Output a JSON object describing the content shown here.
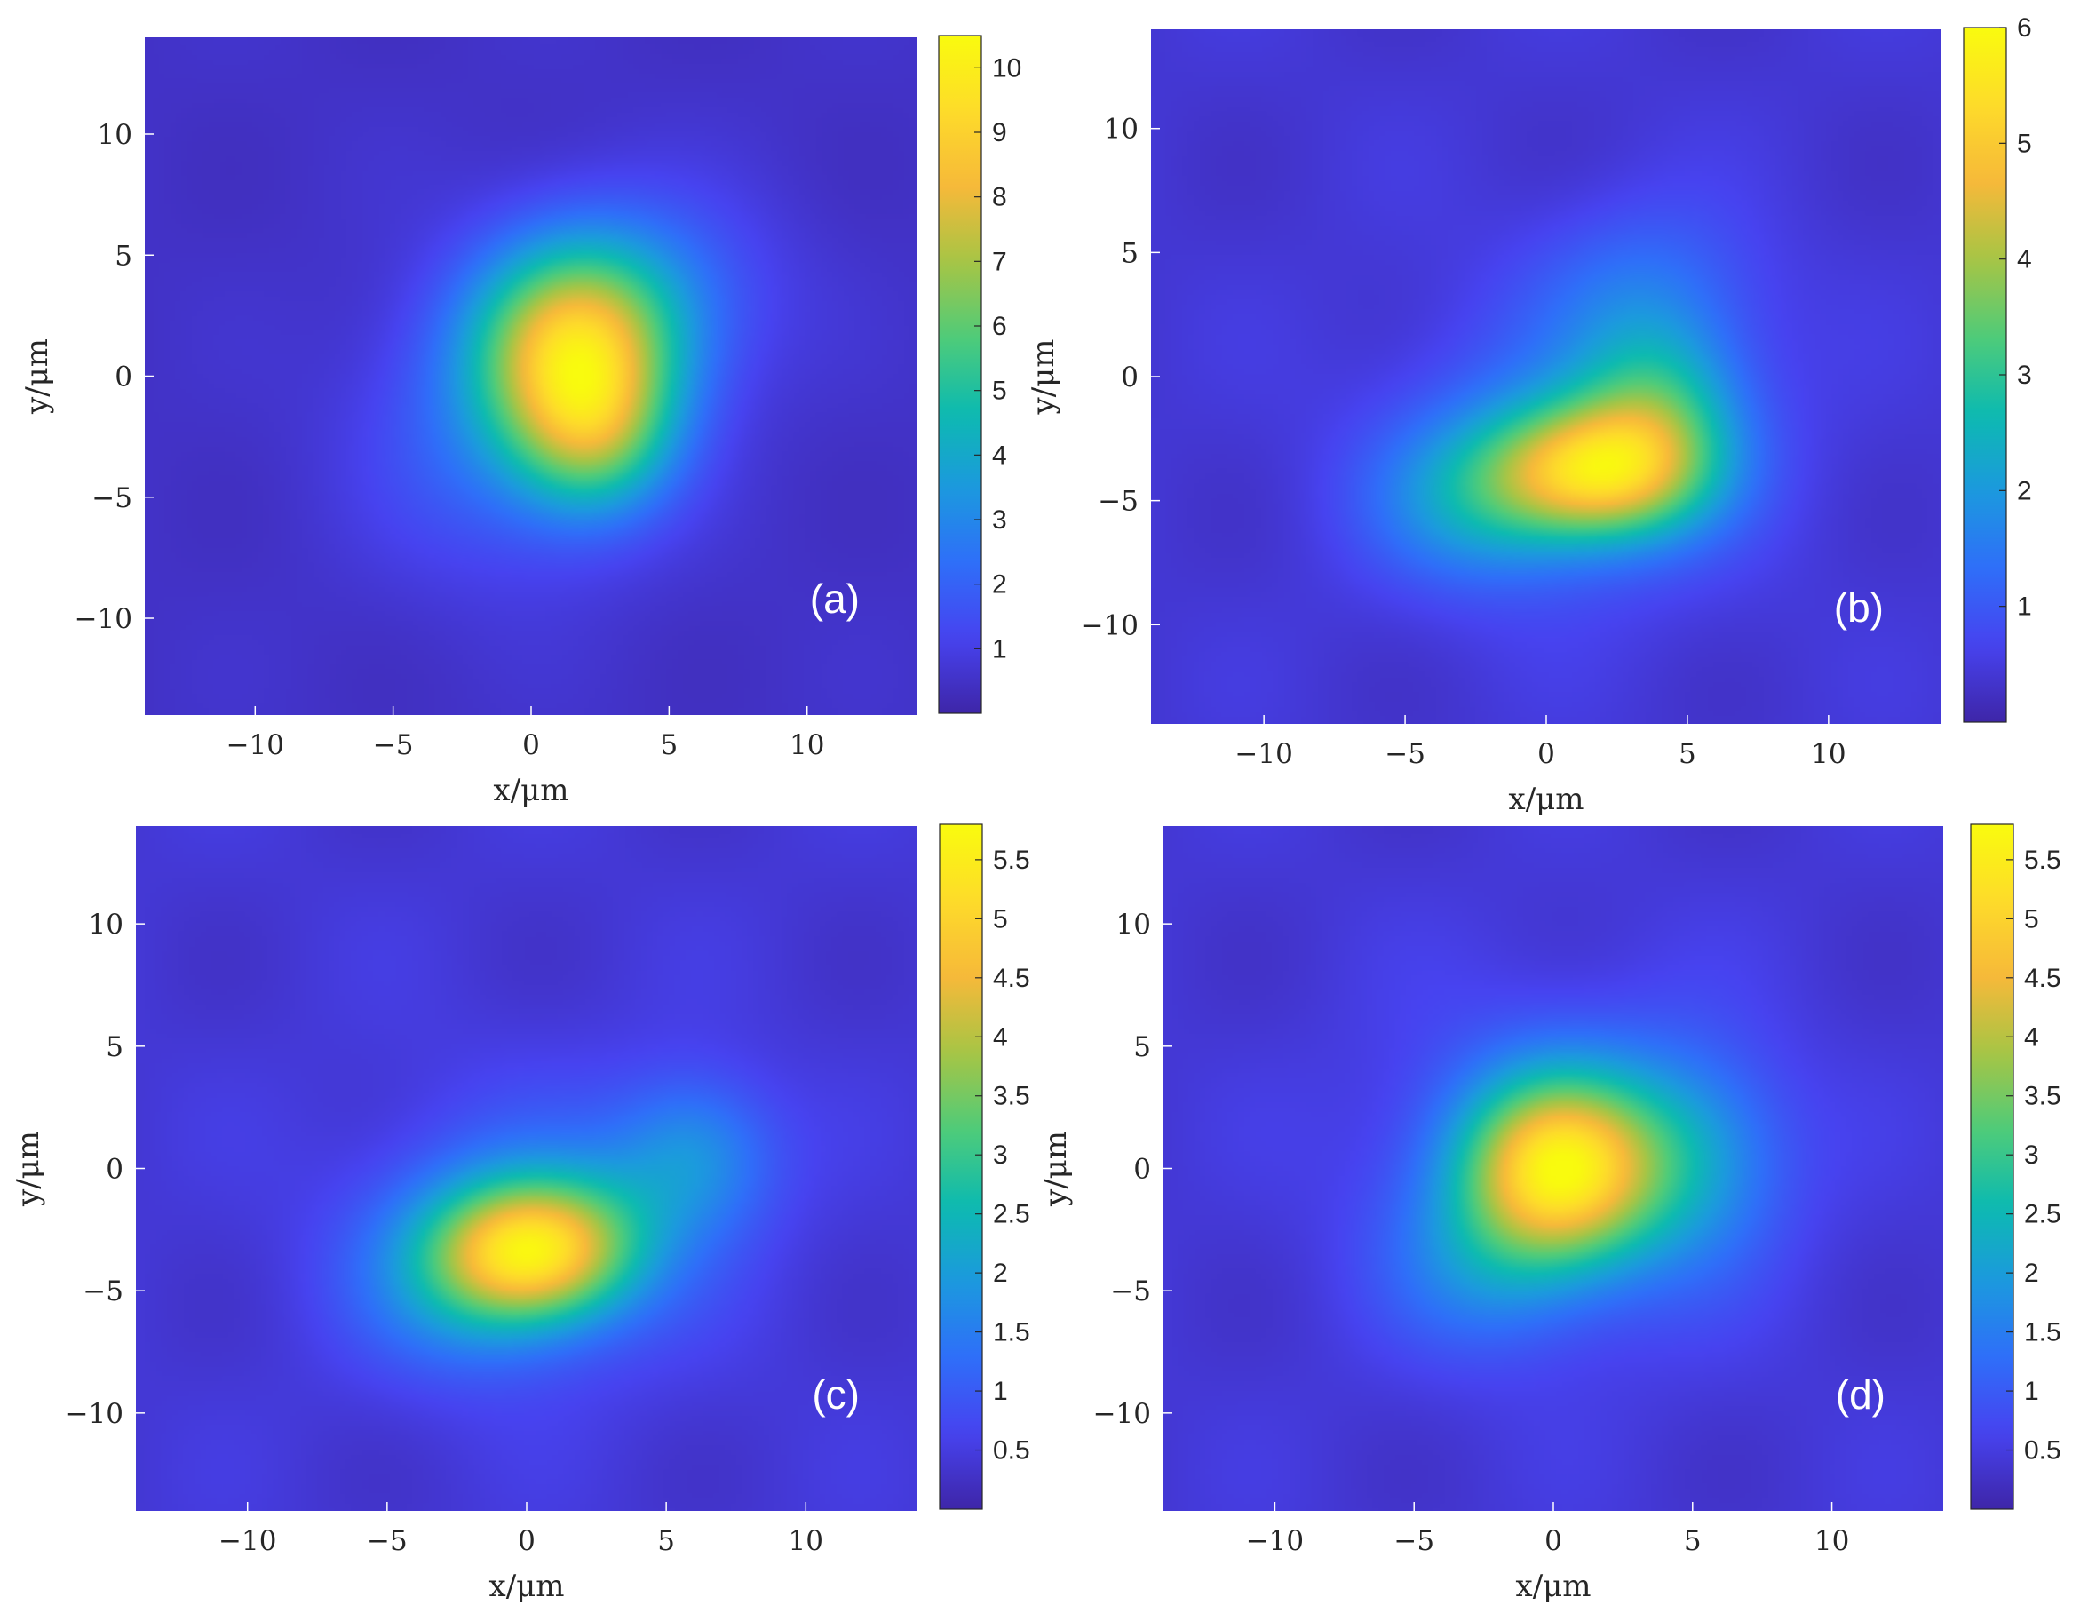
{
  "figure": {
    "colormap": "parula",
    "colormap_stops": [
      "#3e26a8",
      "#4743f0",
      "#2f6ff9",
      "#1c9ade",
      "#0dbbb0",
      "#50cc79",
      "#a8c545",
      "#f7b93a",
      "#fedc2a",
      "#f9fb0e"
    ]
  },
  "chart_data": [
    {
      "type": "heatmap",
      "panel_label": "(a)",
      "xlabel": "x/μm",
      "ylabel": "y/μm",
      "xlim": [
        -14,
        14
      ],
      "ylim": [
        -14,
        14
      ],
      "xticks": [
        -10,
        -5,
        0,
        5,
        10
      ],
      "xtick_labels": [
        "−10",
        "−5",
        "0",
        "5",
        "10"
      ],
      "yticks": [
        -10,
        -5,
        0,
        5,
        10
      ],
      "ytick_labels": [
        "−10",
        "−5",
        "0",
        "5",
        "10"
      ],
      "colorbar": {
        "range": [
          0,
          10.5
        ],
        "ticks": [
          1,
          2,
          3,
          4,
          5,
          6,
          7,
          8,
          9,
          10
        ],
        "tick_labels": [
          "1",
          "2",
          "3",
          "4",
          "5",
          "6",
          "7",
          "8",
          "9",
          "10"
        ]
      },
      "peak": {
        "x": 1.5,
        "y": 1.0,
        "value": 10.5
      },
      "background_value": 0.5,
      "components": [
        {
          "x": 1.6,
          "y": 1.2,
          "amp": 7.0,
          "sx": 2.6,
          "sy": 3.0
        },
        {
          "x": 2.3,
          "y": -2.5,
          "amp": 3.6,
          "sx": 2.0,
          "sy": 2.4
        },
        {
          "x": -1.0,
          "y": -2.5,
          "amp": 1.6,
          "sx": 3.5,
          "sy": 4.0
        },
        {
          "x": 4.5,
          "y": 3.5,
          "amp": 1.3,
          "sx": 3.2,
          "sy": 3.0
        }
      ]
    },
    {
      "type": "heatmap",
      "panel_label": "(b)",
      "xlabel": "x/μm",
      "ylabel": "y/μm",
      "xlim": [
        -14,
        14
      ],
      "ylim": [
        -14,
        14
      ],
      "xticks": [
        -10,
        -5,
        0,
        5,
        10
      ],
      "xtick_labels": [
        "−10",
        "−5",
        "0",
        "5",
        "10"
      ],
      "yticks": [
        -10,
        -5,
        0,
        5,
        10
      ],
      "ytick_labels": [
        "−10",
        "−5",
        "0",
        "5",
        "10"
      ],
      "colorbar": {
        "range": [
          0,
          6
        ],
        "ticks": [
          1,
          2,
          3,
          4,
          5,
          6
        ],
        "tick_labels": [
          "1",
          "2",
          "3",
          "4",
          "5",
          "6"
        ]
      },
      "peak": {
        "x": 1.5,
        "y": -4.0,
        "value": 6.0
      },
      "background_value": 0.4,
      "components": [
        {
          "x": 1.8,
          "y": -3.8,
          "amp": 3.9,
          "sx": 2.6,
          "sy": 1.9
        },
        {
          "x": 4.0,
          "y": -1.2,
          "amp": 1.7,
          "sx": 2.0,
          "sy": 2.5
        },
        {
          "x": -2.5,
          "y": -5.0,
          "amp": 1.3,
          "sx": 2.6,
          "sy": 2.3
        },
        {
          "x": 3.5,
          "y": 3.5,
          "amp": 0.8,
          "sx": 2.8,
          "sy": 2.6
        },
        {
          "x": 1.0,
          "y": -3.0,
          "amp": 0.9,
          "sx": 4.5,
          "sy": 4.0
        }
      ]
    },
    {
      "type": "heatmap",
      "panel_label": "(c)",
      "xlabel": "x/μm",
      "ylabel": "y/μm",
      "xlim": [
        -14,
        14
      ],
      "ylim": [
        -14,
        14
      ],
      "xticks": [
        -10,
        -5,
        0,
        5,
        10
      ],
      "xtick_labels": [
        "−10",
        "−5",
        "0",
        "5",
        "10"
      ],
      "yticks": [
        -10,
        -5,
        0,
        5,
        10
      ],
      "ytick_labels": [
        "−10",
        "−5",
        "0",
        "5",
        "10"
      ],
      "colorbar": {
        "range": [
          0,
          5.8
        ],
        "ticks": [
          0.5,
          1,
          1.5,
          2,
          2.5,
          3,
          3.5,
          4,
          4.5,
          5,
          5.5
        ],
        "tick_labels": [
          "0.5",
          "1",
          "1.5",
          "2",
          "2.5",
          "3",
          "3.5",
          "4",
          "4.5",
          "5",
          "5.5"
        ]
      },
      "peak": {
        "x": 0.0,
        "y": -3.5,
        "value": 5.8
      },
      "background_value": 0.4,
      "components": [
        {
          "x": 0.0,
          "y": -3.4,
          "amp": 3.8,
          "sx": 2.3,
          "sy": 2.0
        },
        {
          "x": 2.5,
          "y": -2.8,
          "amp": 0.8,
          "sx": 2.0,
          "sy": 2.0
        },
        {
          "x": 6.0,
          "y": 0.5,
          "amp": 1.3,
          "sx": 2.0,
          "sy": 2.3
        },
        {
          "x": -2.5,
          "y": -4.5,
          "amp": 1.0,
          "sx": 2.6,
          "sy": 2.6
        },
        {
          "x": 0.5,
          "y": -2.5,
          "amp": 0.8,
          "sx": 4.5,
          "sy": 4.0
        }
      ]
    },
    {
      "type": "heatmap",
      "panel_label": "(d)",
      "xlabel": "x/μm",
      "ylabel": "y/μm",
      "xlim": [
        -14,
        14
      ],
      "ylim": [
        -14,
        14
      ],
      "xticks": [
        -10,
        -5,
        0,
        5,
        10
      ],
      "xtick_labels": [
        "−10",
        "−5",
        "0",
        "5",
        "10"
      ],
      "yticks": [
        -10,
        -5,
        0,
        5,
        10
      ],
      "ytick_labels": [
        "−10",
        "−5",
        "0",
        "5",
        "10"
      ],
      "colorbar": {
        "range": [
          0,
          5.8
        ],
        "ticks": [
          0.5,
          1,
          1.5,
          2,
          2.5,
          3,
          3.5,
          4,
          4.5,
          5,
          5.5
        ],
        "tick_labels": [
          "0.5",
          "1",
          "1.5",
          "2",
          "2.5",
          "3",
          "3.5",
          "4",
          "4.5",
          "5",
          "5.5"
        ]
      },
      "peak": {
        "x": 0.0,
        "y": 0.0,
        "value": 5.8
      },
      "background_value": 0.4,
      "components": [
        {
          "x": 0.2,
          "y": 0.0,
          "amp": 4.0,
          "sx": 2.4,
          "sy": 2.6
        },
        {
          "x": 5.0,
          "y": 0.5,
          "amp": 1.1,
          "sx": 2.3,
          "sy": 3.0
        },
        {
          "x": -2.5,
          "y": -4.0,
          "amp": 0.8,
          "sx": 2.5,
          "sy": 2.5
        },
        {
          "x": 0.5,
          "y": 0.0,
          "amp": 0.9,
          "sx": 4.5,
          "sy": 4.5
        }
      ]
    }
  ]
}
